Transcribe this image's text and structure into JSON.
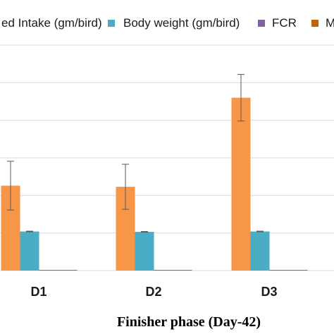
{
  "chart_data": {
    "type": "bar",
    "xlabel": "Finisher phase (Day-42)",
    "ylabel": "",
    "categories": [
      "D1",
      "D2",
      "D3"
    ],
    "ylim": [
      0,
      6000
    ],
    "grid": true,
    "legend_position": "top",
    "series": [
      {
        "name": "Feed Intake (gm/bird)",
        "color": "#F79646",
        "values": [
          2260,
          2230,
          4600
        ],
        "errors": [
          650,
          600,
          620
        ]
      },
      {
        "name": "Body weight (gm/bird)",
        "color": "#4BACC6",
        "values": [
          1040,
          1030,
          1040
        ],
        "errors": [
          10,
          10,
          10
        ]
      },
      {
        "name": "FCR",
        "color": "#8064A2",
        "values": [
          2.2,
          2.2,
          4.4
        ],
        "errors": [
          0,
          0,
          0
        ]
      },
      {
        "name": "Mortality",
        "color": "#C0640C",
        "values": [
          2,
          2,
          2
        ],
        "errors": [
          0,
          0,
          0
        ]
      }
    ],
    "legend_labels": [
      "ed Intake (gm/bird)",
      "Body weight (gm/bird)",
      "FCR",
      "M"
    ]
  }
}
